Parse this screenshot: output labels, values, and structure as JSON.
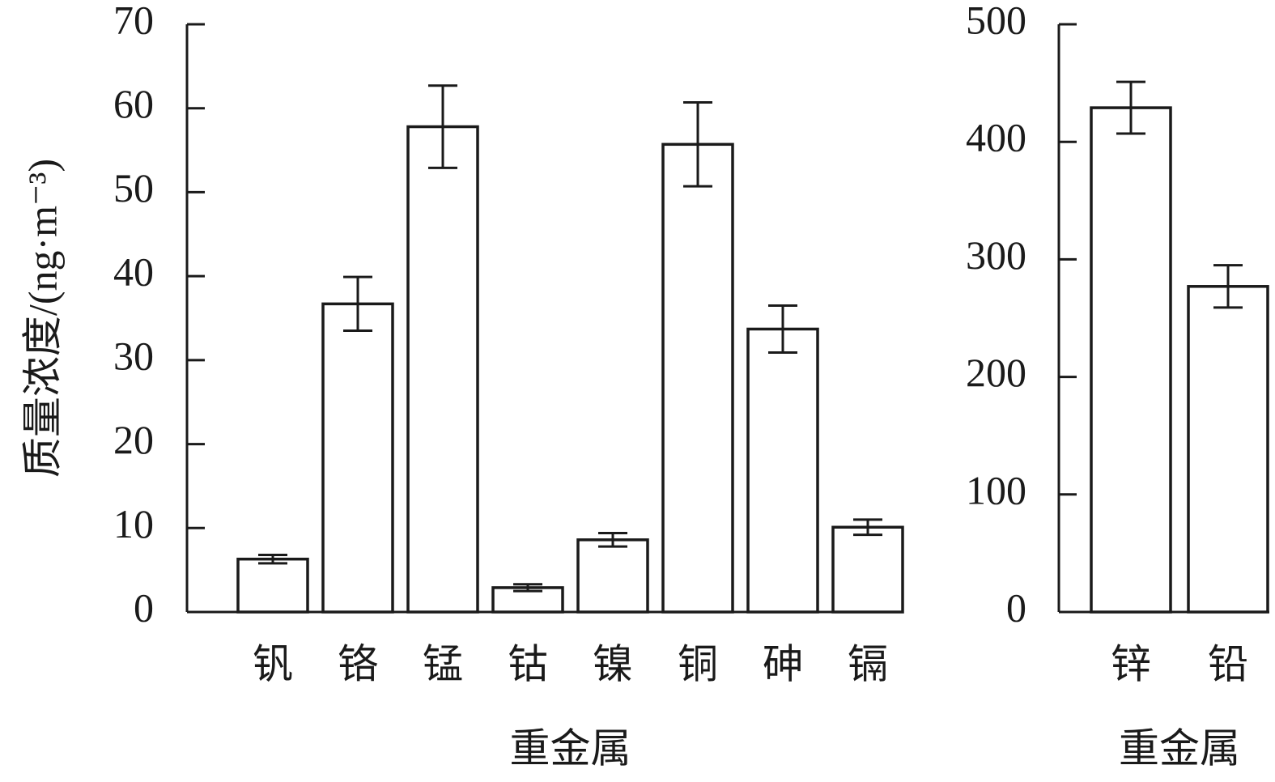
{
  "chart_data": [
    {
      "type": "bar",
      "y_label": "质量浓度/(ng·m⁻³)",
      "x_label": "重金属",
      "categories": [
        "钒",
        "铬",
        "锰",
        "钴",
        "镍",
        "铜",
        "砷",
        "镉"
      ],
      "values": [
        6.3,
        36.7,
        57.8,
        2.9,
        8.6,
        55.7,
        33.7,
        10.1
      ],
      "errors": [
        0.5,
        3.2,
        4.9,
        0.4,
        0.8,
        5.0,
        2.8,
        0.9
      ],
      "color": "#ffffff",
      "ylim": [
        0,
        70
      ],
      "yticks": [
        0,
        10,
        20,
        30,
        40,
        50,
        60,
        70
      ]
    },
    {
      "type": "bar",
      "x_label": "重金属",
      "categories": [
        "锌",
        "铅"
      ],
      "values": [
        429,
        277
      ],
      "errors": [
        22,
        18
      ],
      "color": "#ffffff",
      "ylim": [
        0,
        500
      ],
      "yticks": [
        0,
        100,
        200,
        300,
        400,
        500
      ]
    }
  ]
}
